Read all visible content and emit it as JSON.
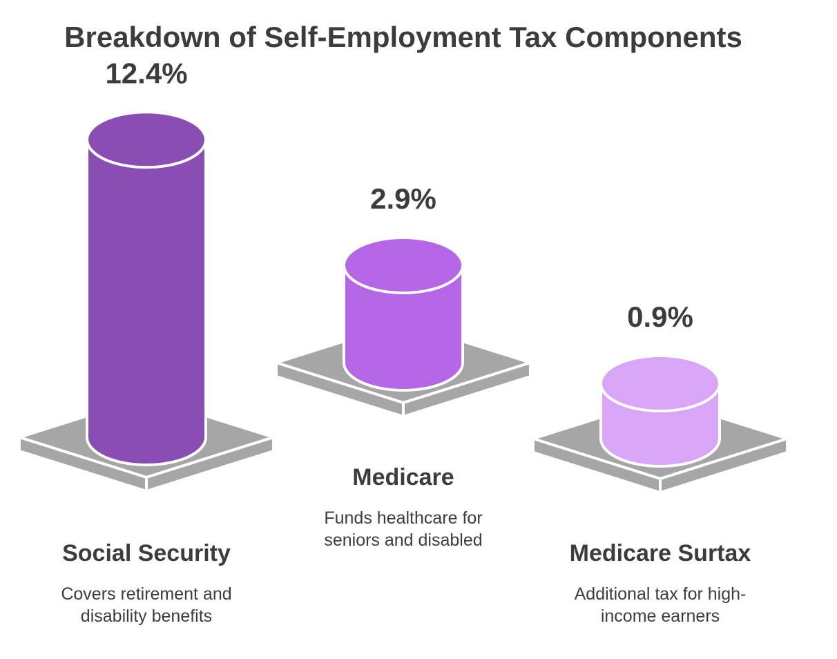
{
  "chart_data": {
    "type": "bar",
    "title": "Breakdown of Self-Employment Tax Components",
    "categories": [
      "Social Security",
      "Medicare",
      "Medicare Surtax"
    ],
    "values": [
      12.4,
      2.9,
      0.9
    ],
    "value_labels": [
      "12.4%",
      "2.9%",
      "0.9%"
    ],
    "descriptions": [
      [
        "Covers retirement and",
        "disability benefits"
      ],
      [
        "Funds healthcare for",
        "seniors and disabled"
      ],
      [
        "Additional tax for high-",
        "income earners"
      ]
    ],
    "unit": "%",
    "colors": [
      "#8a4db3",
      "#b466e6",
      "#d9a6f7"
    ],
    "pedestal_color": "#a6a6a6"
  }
}
